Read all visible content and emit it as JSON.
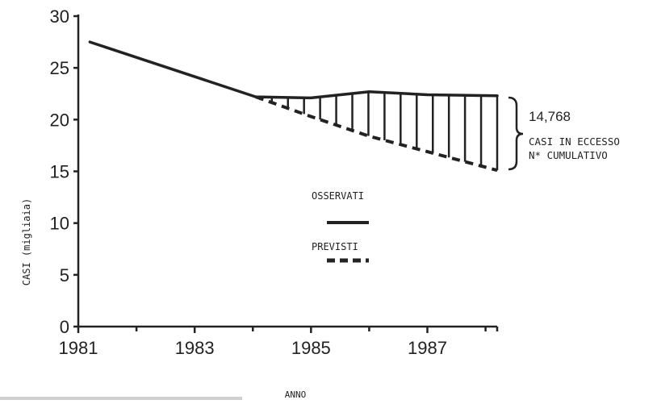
{
  "chart_data": {
    "type": "line",
    "xlabel": "ANNO",
    "ylabel": "CASI (migliaia)",
    "x_ticks": [
      "1981",
      "1983",
      "1985",
      "1987"
    ],
    "y_ticks": [
      "0",
      "5",
      "10",
      "15",
      "20",
      "25",
      "30"
    ],
    "xlim": [
      1981,
      1988.2
    ],
    "ylim": [
      0,
      30
    ],
    "series": [
      {
        "name": "OSSERVATI",
        "style": "solid",
        "x": [
          1981.2,
          1984.05,
          1985,
          1986,
          1987,
          1988.2
        ],
        "y": [
          27.5,
          22.2,
          22.1,
          22.7,
          22.4,
          22.3
        ]
      },
      {
        "name": "PREVISTI",
        "style": "dashed",
        "x": [
          1984.05,
          1985,
          1986,
          1987,
          1988.2
        ],
        "y": [
          22.2,
          20.3,
          18.4,
          16.9,
          15.1
        ]
      }
    ],
    "annotation": {
      "value": "14,768",
      "line1": "CASI IN ECCESSO",
      "line2": "N* CUMULATIVO"
    },
    "legend_placement": "center",
    "grid": false
  }
}
